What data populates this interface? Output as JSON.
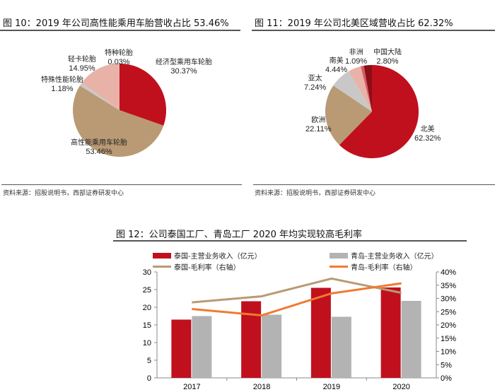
{
  "fig10": {
    "title": "图 10：2019 年公司高性能乘用车胎营收占比 53.46%",
    "source": "资料来源：招股说明书，西部证券研发中心"
  },
  "fig11": {
    "title": "图 11：2019 年公司北美区域营收占比 62.32%",
    "source": "资料来源：招股说明书，西部证券研发中心"
  },
  "fig12": {
    "title": "图 12：公司泰国工厂、青岛工厂 2020 年均实现较高毛利率"
  },
  "chart_data": [
    {
      "type": "pie",
      "slices": [
        {
          "name": "经济型乘用车轮胎",
          "value": 30.37,
          "label": "30.37%",
          "color": "#c0101e"
        },
        {
          "name": "高性能乘用车轮胎",
          "value": 53.46,
          "label": "53.46%",
          "color": "#b99a74"
        },
        {
          "name": "特殊性能轮胎",
          "value": 1.18,
          "label": "1.18%",
          "color": "#c8c8c8"
        },
        {
          "name": "轻卡轮胎",
          "value": 14.95,
          "label": "14.95%",
          "color": "#e8b2a8"
        },
        {
          "name": "特种轮胎",
          "value": 0.03,
          "label": "0.03%",
          "color": "#d06070"
        }
      ]
    },
    {
      "type": "pie",
      "slices": [
        {
          "name": "北美",
          "value": 62.32,
          "label": "62.32%",
          "color": "#c0101e"
        },
        {
          "name": "欧洲",
          "value": 22.11,
          "label": "22.11%",
          "color": "#b99a74"
        },
        {
          "name": "亚太",
          "value": 7.24,
          "label": "7.24%",
          "color": "#c8c8c8"
        },
        {
          "name": "南美",
          "value": 4.44,
          "label": "4.44%",
          "color": "#e8b2a8"
        },
        {
          "name": "非洲",
          "value": 1.09,
          "label": "1.09%",
          "color": "#d85a6a"
        },
        {
          "name": "中国大陆",
          "value": 2.8,
          "label": "2.80%",
          "color": "#8a1014"
        }
      ]
    },
    {
      "type": "bar",
      "categories": [
        "2017",
        "2018",
        "2019",
        "2020"
      ],
      "y_left": {
        "range": [
          0,
          30
        ],
        "ticks": [
          "0",
          "5",
          "10",
          "15",
          "20",
          "25",
          "30"
        ]
      },
      "y_right": {
        "range": [
          0,
          40
        ],
        "ticks": [
          "0%",
          "5%",
          "10%",
          "15%",
          "20%",
          "25%",
          "30%",
          "35%",
          "40%"
        ]
      },
      "series": [
        {
          "name": "泰国-主营业务收入（亿元）",
          "kind": "bar",
          "axis": "left",
          "color": "#c0101e",
          "values": [
            16.5,
            21.7,
            25.5,
            25.6
          ]
        },
        {
          "name": "青岛-主营业务收入（亿元）",
          "kind": "bar",
          "axis": "left",
          "color": "#b3b3b3",
          "values": [
            17.5,
            17.9,
            17.3,
            21.8
          ]
        },
        {
          "name": "泰国-毛利率（右轴）",
          "kind": "line",
          "axis": "right",
          "color": "#b99a74",
          "values": [
            28.5,
            30.8,
            37.5,
            32.1
          ]
        },
        {
          "name": "青岛-毛利率（右轴）",
          "kind": "line",
          "axis": "right",
          "color": "#f07a30",
          "values": [
            26.0,
            23.6,
            31.9,
            35.7
          ]
        }
      ],
      "legend": "top"
    }
  ]
}
